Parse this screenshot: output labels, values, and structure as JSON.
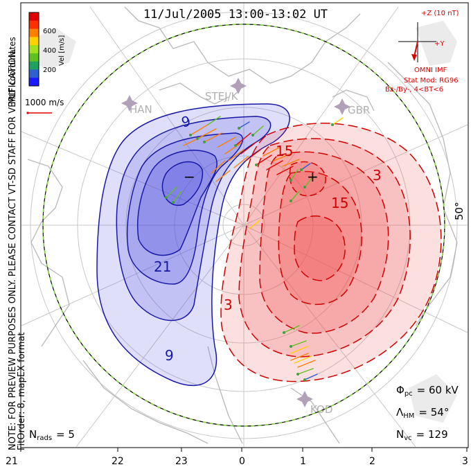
{
  "title": "11/Jul/2005 13:00-13:02 UT",
  "colorbar": {
    "label": "Vel [m/s]",
    "ticks": [
      "600",
      "400",
      "200"
    ],
    "colors": [
      "#1a1aff",
      "#3060d0",
      "#20a060",
      "#60c020",
      "#a0e020",
      "#ffd000",
      "#ff8000",
      "#ff3000",
      "#e00000"
    ]
  },
  "coordinates_label": "MLT coordinates",
  "velocity_scale": "1000 m/s",
  "side_note": "NOTE: FOR PREVIEW PURPOSES ONLY. PLEASE CONTACT VT-SD STAFF FOR VERIFICATION.",
  "fit_order": "FitOrder: 8, mapEX format",
  "imf": {
    "plus_z": "+Z (10 nT)",
    "plus_y": "+Y",
    "label": "OMNI IMF",
    "stat_mod": "Stat Mod: RG96",
    "bin": "Bz-/By-, 4<BT<6",
    "color": "#dd0000"
  },
  "stations": [
    "HAN",
    "STEJ/K",
    "GBR",
    "KOD"
  ],
  "latitude_label": "50°",
  "contour_labels": {
    "negative": [
      "9",
      "21",
      "9"
    ],
    "positive": [
      "15",
      "3",
      "15",
      "3"
    ],
    "min_marker": "−",
    "max_marker": "+"
  },
  "stats": {
    "phi_pc": "Φ",
    "phi_pc_sub": "pc",
    "phi_pc_value": "= 60 kV",
    "lambda_hm": "Λ",
    "lambda_hm_sub": "HM",
    "lambda_hm_value": "= 54°",
    "n_vc": "N",
    "n_vc_sub": "vc",
    "n_vc_value": "= 129",
    "n_rads": "N",
    "n_rads_sub": "rads",
    "n_rads_value": "= 5"
  },
  "mlt_axis": [
    "21",
    "22",
    "23",
    "0",
    "1",
    "2",
    "3"
  ],
  "colors": {
    "negative_fill": "#5050e0",
    "positive_fill": "#f05050",
    "negative_line": "#1818a8",
    "positive_line": "#d00000",
    "land": "#c8c8c8",
    "grid": "#c8c8c8",
    "hmb_dash": "#80d040"
  }
}
